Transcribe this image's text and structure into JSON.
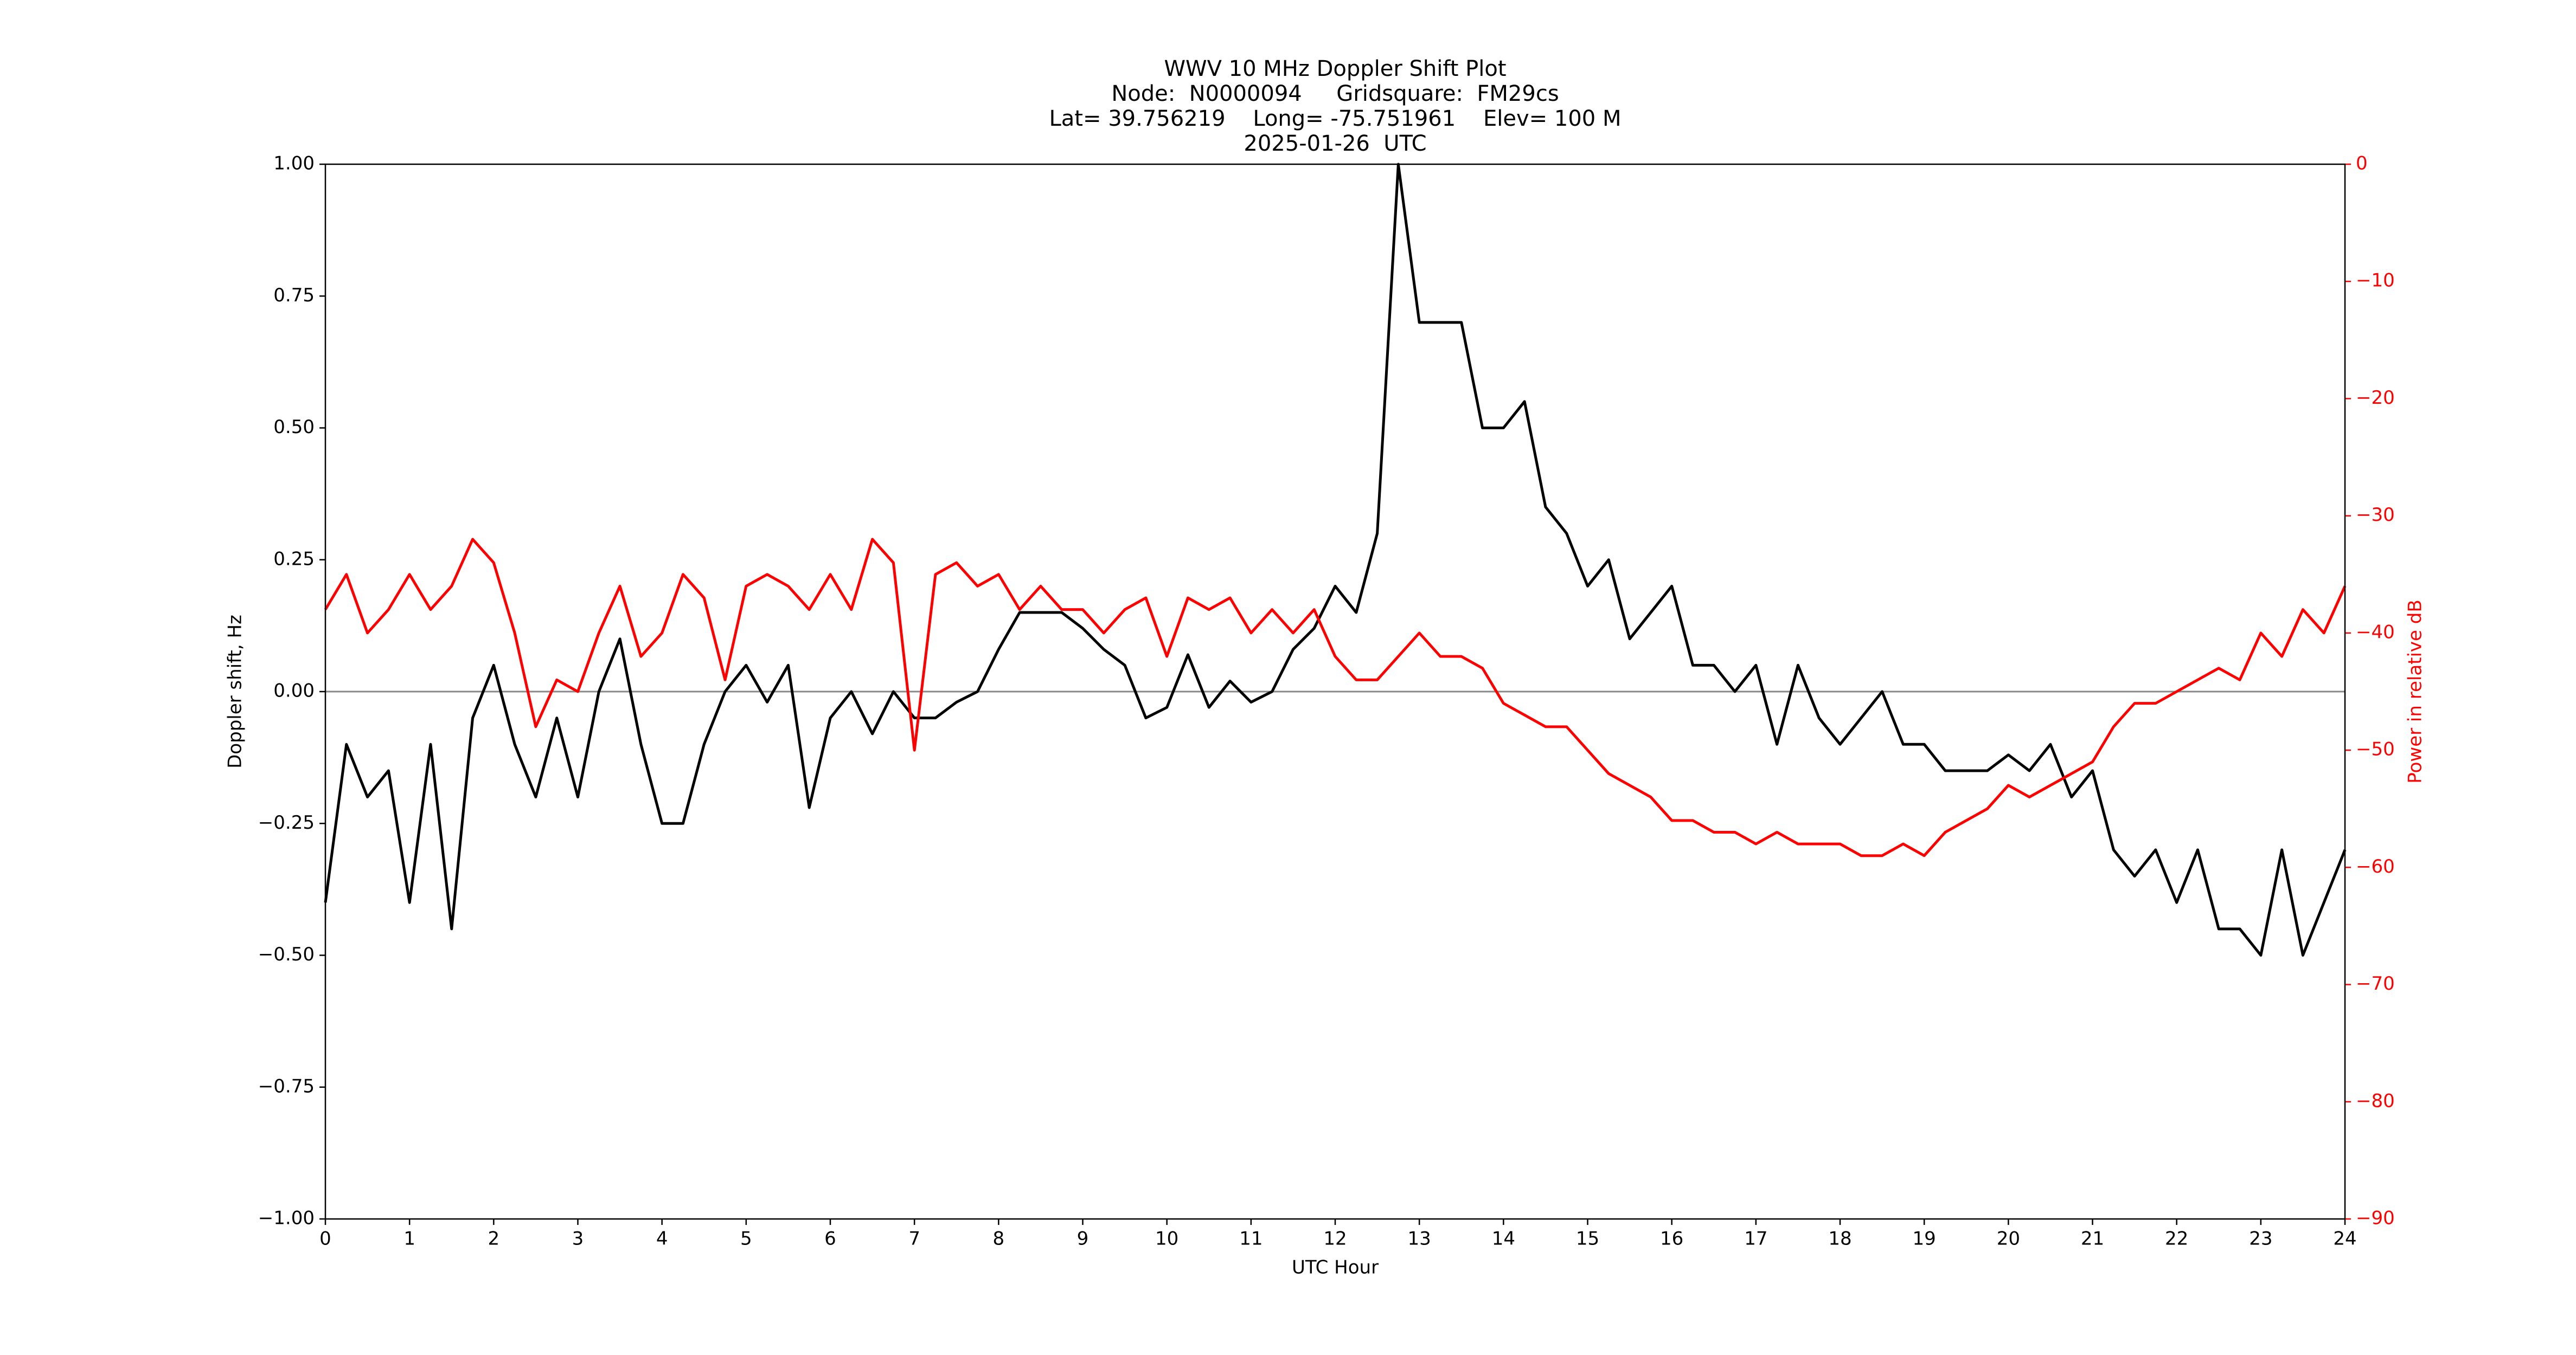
{
  "chart_data": {
    "type": "line",
    "title": [
      "WWV 10 MHz Doppler Shift Plot",
      "Node:  N0000094     Gridsquare:  FM29cs",
      "Lat= 39.756219    Long= -75.751961    Elev= 100 M",
      "2025-01-26  UTC"
    ],
    "xlabel": "UTC Hour",
    "ylabel": "Doppler shift, Hz",
    "y2label": "Power in relative dB",
    "x": [
      0,
      0.25,
      0.5,
      0.75,
      1,
      1.25,
      1.5,
      1.75,
      2,
      2.25,
      2.5,
      2.75,
      3,
      3.25,
      3.5,
      3.75,
      4,
      4.25,
      4.5,
      4.75,
      5,
      5.25,
      5.5,
      5.75,
      6,
      6.25,
      6.5,
      6.75,
      7,
      7.25,
      7.5,
      7.75,
      8,
      8.25,
      8.5,
      8.75,
      9,
      9.25,
      9.5,
      9.75,
      10,
      10.25,
      10.5,
      10.75,
      11,
      11.25,
      11.5,
      11.75,
      12,
      12.25,
      12.5,
      12.75,
      13,
      13.25,
      13.5,
      13.75,
      14,
      14.25,
      14.5,
      14.75,
      15,
      15.25,
      15.5,
      15.75,
      16,
      16.25,
      16.5,
      16.75,
      17,
      17.25,
      17.5,
      17.75,
      18,
      18.25,
      18.5,
      18.75,
      19,
      19.25,
      19.5,
      19.75,
      20,
      20.25,
      20.5,
      20.75,
      21,
      21.25,
      21.5,
      21.75,
      22,
      22.25,
      22.5,
      22.75,
      23,
      23.25,
      23.5,
      23.75,
      24
    ],
    "series": [
      {
        "name": "Doppler shift",
        "color": "#000000",
        "values": [
          -0.4,
          -0.1,
          -0.2,
          -0.15,
          -0.4,
          -0.1,
          -0.45,
          -0.05,
          0.05,
          -0.1,
          -0.2,
          -0.05,
          -0.2,
          0.0,
          0.1,
          -0.1,
          -0.25,
          -0.25,
          -0.1,
          0.0,
          0.05,
          -0.02,
          0.05,
          -0.22,
          -0.05,
          0.0,
          -0.08,
          0.0,
          -0.05,
          -0.05,
          -0.02,
          0.0,
          0.08,
          0.15,
          0.15,
          0.15,
          0.12,
          0.08,
          0.05,
          -0.05,
          -0.03,
          0.07,
          -0.03,
          0.02,
          -0.02,
          0.0,
          0.08,
          0.12,
          0.2,
          0.15,
          0.3,
          1.0,
          0.7,
          0.7,
          0.7,
          0.5,
          0.5,
          0.55,
          0.35,
          0.3,
          0.2,
          0.25,
          0.1,
          0.15,
          0.2,
          0.05,
          0.05,
          0.0,
          0.05,
          -0.1,
          0.05,
          -0.05,
          -0.1,
          -0.05,
          0.0,
          -0.1,
          -0.1,
          -0.15,
          -0.15,
          -0.15,
          -0.12,
          -0.15,
          -0.1,
          -0.2,
          -0.15,
          -0.3,
          -0.35,
          -0.3,
          -0.4,
          -0.3,
          -0.45,
          -0.45,
          -0.5,
          -0.3,
          -0.5,
          -0.4,
          -0.3
        ]
      },
      {
        "name": "Power",
        "color": "#ff0000",
        "axis": "y2",
        "values": [
          -38,
          -35,
          -40,
          -38,
          -35,
          -38,
          -36,
          -32,
          -34,
          -40,
          -48,
          -44,
          -45,
          -40,
          -36,
          -42,
          -40,
          -35,
          -37,
          -44,
          -36,
          -35,
          -36,
          -38,
          -35,
          -38,
          -32,
          -34,
          -50,
          -35,
          -34,
          -36,
          -35,
          -38,
          -36,
          -38,
          -38,
          -40,
          -38,
          -37,
          -42,
          -37,
          -38,
          -37,
          -40,
          -38,
          -40,
          -38,
          -42,
          -44,
          -44,
          -42,
          -40,
          -42,
          -42,
          -43,
          -46,
          -47,
          -48,
          -48,
          -50,
          -52,
          -53,
          -54,
          -56,
          -56,
          -57,
          -57,
          -58,
          -57,
          -58,
          -58,
          -58,
          -59,
          -59,
          -58,
          -59,
          -57,
          -56,
          -55,
          -53,
          -54,
          -53,
          -52,
          -51,
          -48,
          -46,
          -46,
          -45,
          -44,
          -43,
          -44,
          -40,
          -42,
          -38,
          -40,
          -36
        ]
      }
    ],
    "xlim": [
      0,
      24
    ],
    "xticks": [
      0,
      1,
      2,
      3,
      4,
      5,
      6,
      7,
      8,
      9,
      10,
      11,
      12,
      13,
      14,
      15,
      16,
      17,
      18,
      19,
      20,
      21,
      22,
      23,
      24
    ],
    "ylim": [
      -1,
      1
    ],
    "yticks": [
      {
        "value": -1,
        "label": "−1.00"
      },
      {
        "value": -0.75,
        "label": "−0.75"
      },
      {
        "value": -0.5,
        "label": "−0.50"
      },
      {
        "value": -0.25,
        "label": "−0.25"
      },
      {
        "value": 0,
        "label": "0.00"
      },
      {
        "value": 0.25,
        "label": "0.25"
      },
      {
        "value": 0.5,
        "label": "0.50"
      },
      {
        "value": 0.75,
        "label": "0.75"
      },
      {
        "value": 1,
        "label": "1.00"
      }
    ],
    "y2lim": [
      -90,
      0
    ],
    "y2ticks": [
      {
        "value": -90,
        "label": "−90"
      },
      {
        "value": -80,
        "label": "−80"
      },
      {
        "value": -70,
        "label": "−70"
      },
      {
        "value": -60,
        "label": "−60"
      },
      {
        "value": -50,
        "label": "−50"
      },
      {
        "value": -40,
        "label": "−40"
      },
      {
        "value": -30,
        "label": "−30"
      },
      {
        "value": -20,
        "label": "−20"
      },
      {
        "value": -10,
        "label": "−10"
      },
      0
    ],
    "y2color": "#ff0000",
    "grid": false
  }
}
